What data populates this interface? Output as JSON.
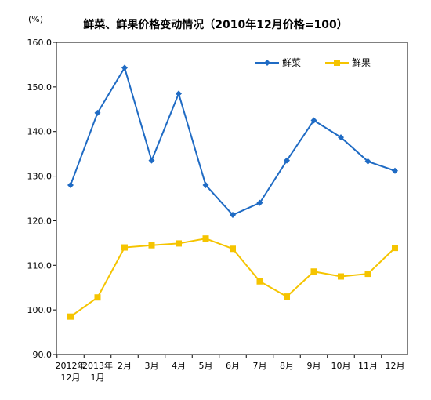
{
  "chart_data": {
    "type": "line",
    "title": "鲜菜、鲜果价格变动情况（2010年12月价格=100）",
    "ylabel": "(%)",
    "xlabel": "",
    "ylim": [
      90,
      160
    ],
    "yticks": [
      "90.0",
      "100.0",
      "110.0",
      "120.0",
      "130.0",
      "140.0",
      "150.0",
      "160.0"
    ],
    "categories": [
      [
        "2012年",
        "12月"
      ],
      [
        "2013年",
        "1月"
      ],
      [
        "2月"
      ],
      [
        "3月"
      ],
      [
        "4月"
      ],
      [
        "5月"
      ],
      [
        "6月"
      ],
      [
        "7月"
      ],
      [
        "8月"
      ],
      [
        "9月"
      ],
      [
        "10月"
      ],
      [
        "11月"
      ],
      [
        "12月"
      ]
    ],
    "legend_position": "top-right",
    "grid": false,
    "series": [
      {
        "name": "鲜菜",
        "color": "#1F6BC4",
        "marker": "diamond",
        "values": [
          128.0,
          144.2,
          154.3,
          133.5,
          148.5,
          128.0,
          121.3,
          124.0,
          133.5,
          142.5,
          138.7,
          133.3,
          131.2
        ]
      },
      {
        "name": "鲜果",
        "color": "#F5C400",
        "marker": "square",
        "values": [
          98.5,
          102.8,
          114.0,
          114.5,
          114.9,
          116.0,
          113.7,
          106.4,
          103.0,
          108.6,
          107.5,
          108.1,
          113.9
        ]
      }
    ]
  }
}
